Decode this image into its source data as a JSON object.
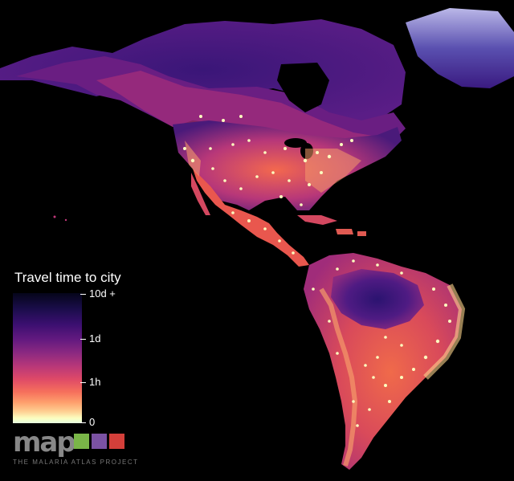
{
  "legend": {
    "title": "Travel time to city",
    "ticks": [
      {
        "label": "10d +",
        "level": 1.0
      },
      {
        "label": "1d",
        "level": 0.66
      },
      {
        "label": "1h",
        "level": 0.33
      },
      {
        "label": "0",
        "level": 0.0
      }
    ]
  },
  "logo": {
    "wordmark": "map",
    "subtitle": "THE MALARIA ATLAS PROJECT",
    "box_colors": [
      "#7ab648",
      "#7b52a3",
      "#d43f3a"
    ]
  },
  "colors": {
    "background": "#000000",
    "remote": "#2a1460",
    "moderate": "#c0387a",
    "near": "#f3684e",
    "city": "#fcfdbf"
  }
}
